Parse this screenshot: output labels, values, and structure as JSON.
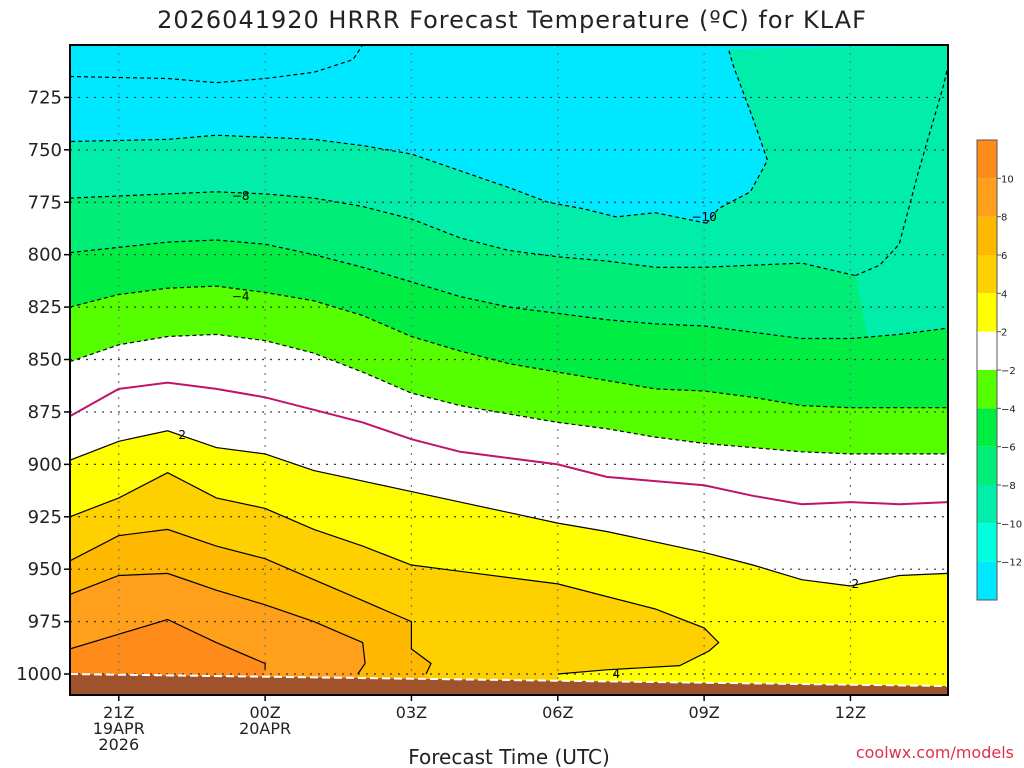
{
  "chart_data": {
    "type": "heatmap",
    "title": "2026041920 HRRR Forecast Temperature (ºC) for KLAF",
    "xlabel": "Forecast Time (UTC)",
    "ylabel": "",
    "credit": "coolwx.com/models",
    "x_ticks": [
      {
        "h": 1,
        "lines": [
          "21Z",
          "19APR",
          "2026"
        ]
      },
      {
        "h": 4,
        "lines": [
          "00Z",
          "20APR"
        ]
      },
      {
        "h": 7,
        "lines": [
          "03Z"
        ]
      },
      {
        "h": 10,
        "lines": [
          "06Z"
        ]
      },
      {
        "h": 13,
        "lines": [
          "09Z"
        ]
      },
      {
        "h": 16,
        "lines": [
          "12Z"
        ]
      }
    ],
    "xlim": [
      0,
      18
    ],
    "y_ticks": [
      725,
      750,
      775,
      800,
      825,
      850,
      875,
      900,
      925,
      950,
      975,
      1000
    ],
    "ylim_hpa": [
      700,
      1010
    ],
    "y_scale": "linear-inverted",
    "grid": true,
    "legend_position": "right",
    "surface_pressure_hpa": 1000,
    "colorbar": {
      "bands": [
        {
          "from": 10,
          "to": 12,
          "color": "#ff8c1a"
        },
        {
          "from": 8,
          "to": 10,
          "color": "#ff9f1a"
        },
        {
          "from": 6,
          "to": 8,
          "color": "#ffb800"
        },
        {
          "from": 4,
          "to": 6,
          "color": "#ffd000"
        },
        {
          "from": 2,
          "to": 4,
          "color": "#ffff00"
        },
        {
          "from": -2,
          "to": 2,
          "color": "#ffffff"
        },
        {
          "from": -4,
          "to": -2,
          "color": "#55ff00"
        },
        {
          "from": -6,
          "to": -4,
          "color": "#00ee44"
        },
        {
          "from": -8,
          "to": -6,
          "color": "#00ee77"
        },
        {
          "from": -10,
          "to": -8,
          "color": "#00eeaa"
        },
        {
          "from": -12,
          "to": -10,
          "color": "#00ffdd"
        },
        {
          "from": -14,
          "to": -12,
          "color": "#00e8ff"
        }
      ],
      "tick_labels": [
        "10",
        "8",
        "6",
        "4",
        "2",
        "−2",
        "−4",
        "−6",
        "−8",
        "−10",
        "−12"
      ]
    },
    "contour_labels": [
      {
        "text": "−8",
        "h": 3.5,
        "p": 772
      },
      {
        "text": "−4",
        "h": 3.5,
        "p": 820
      },
      {
        "text": "−10",
        "h": 13.0,
        "p": 782
      },
      {
        "text": "2",
        "h": 2.3,
        "p": 886
      },
      {
        "text": "2",
        "h": 16.1,
        "p": 957
      },
      {
        "text": "4",
        "h": 11.2,
        "p": 1000
      }
    ],
    "isotherms": [
      {
        "value": -12,
        "points": [
          [
            0,
            715
          ],
          [
            2,
            716
          ],
          [
            3,
            718
          ],
          [
            4,
            716
          ],
          [
            5,
            713
          ],
          [
            5.8,
            707
          ],
          [
            6,
            700
          ]
        ]
      },
      {
        "value": -10,
        "points": [
          [
            13.05,
            785
          ],
          [
            13.3,
            778
          ],
          [
            13.95,
            770
          ],
          [
            14.3,
            755
          ],
          [
            14.0,
            735
          ],
          [
            13.6,
            710
          ],
          [
            13.5,
            702
          ]
        ]
      },
      {
        "value": -10,
        "points": [
          [
            13.05,
            785
          ],
          [
            12.0,
            780
          ],
          [
            11.2,
            782
          ],
          [
            10.5,
            778
          ],
          [
            9.8,
            775
          ],
          [
            9.0,
            768
          ],
          [
            8.0,
            760
          ],
          [
            7.0,
            752
          ],
          [
            6.0,
            748
          ],
          [
            5.0,
            745
          ],
          [
            4.0,
            744
          ],
          [
            3.0,
            743
          ],
          [
            2.0,
            745
          ],
          [
            0,
            746
          ]
        ]
      },
      {
        "value": -10,
        "points": [
          [
            16.1,
            810
          ],
          [
            16.6,
            805
          ],
          [
            17.0,
            795
          ],
          [
            17.4,
            760
          ],
          [
            17.9,
            720
          ],
          [
            18.0,
            710
          ]
        ]
      },
      {
        "value": -8,
        "points": [
          [
            0,
            773
          ],
          [
            2,
            771
          ],
          [
            3,
            770
          ],
          [
            4,
            771
          ],
          [
            5,
            773
          ],
          [
            6,
            777
          ],
          [
            7,
            783
          ],
          [
            8,
            792
          ],
          [
            9,
            798
          ],
          [
            10,
            801
          ],
          [
            11,
            803
          ],
          [
            12,
            806
          ],
          [
            13,
            806
          ],
          [
            14,
            805
          ],
          [
            15,
            804
          ],
          [
            16.1,
            810
          ]
        ]
      },
      {
        "value": -6,
        "points": [
          [
            0,
            799
          ],
          [
            2,
            794
          ],
          [
            3,
            793
          ],
          [
            4,
            795
          ],
          [
            5,
            800
          ],
          [
            6,
            806
          ],
          [
            7,
            813
          ],
          [
            8,
            820
          ],
          [
            9,
            825
          ],
          [
            10,
            828
          ],
          [
            11,
            831
          ],
          [
            12,
            833
          ],
          [
            13,
            834
          ],
          [
            14,
            837
          ],
          [
            15,
            840
          ],
          [
            16,
            840
          ],
          [
            17,
            838
          ],
          [
            18,
            835
          ]
        ]
      },
      {
        "value": -4,
        "points": [
          [
            0,
            825
          ],
          [
            1,
            819
          ],
          [
            2,
            816
          ],
          [
            3,
            815
          ],
          [
            4,
            818
          ],
          [
            5,
            822
          ],
          [
            6,
            829
          ],
          [
            7,
            839
          ],
          [
            8,
            846
          ],
          [
            9,
            852
          ],
          [
            10,
            856
          ],
          [
            11,
            860
          ],
          [
            12,
            864
          ],
          [
            13,
            865
          ],
          [
            14,
            868
          ],
          [
            15,
            872
          ],
          [
            16,
            873
          ],
          [
            17,
            873
          ],
          [
            18,
            873
          ]
        ]
      },
      {
        "value": -2,
        "points": [
          [
            0,
            851
          ],
          [
            1,
            843
          ],
          [
            2,
            839
          ],
          [
            3,
            838
          ],
          [
            4,
            841
          ],
          [
            5,
            847
          ],
          [
            6,
            856
          ],
          [
            7,
            866
          ],
          [
            8,
            872
          ],
          [
            9,
            876
          ],
          [
            10,
            880
          ],
          [
            11,
            883
          ],
          [
            12,
            887
          ],
          [
            13,
            890
          ],
          [
            14,
            892
          ],
          [
            15,
            894
          ],
          [
            16,
            895
          ],
          [
            17,
            895
          ],
          [
            18,
            895
          ]
        ]
      },
      {
        "value": 0,
        "points": [
          [
            0,
            877
          ],
          [
            1,
            864
          ],
          [
            2,
            861
          ],
          [
            3,
            864
          ],
          [
            4,
            868
          ],
          [
            5,
            874
          ],
          [
            6,
            880
          ],
          [
            7,
            888
          ],
          [
            8,
            894
          ],
          [
            9,
            897
          ],
          [
            10,
            900
          ],
          [
            11,
            906
          ],
          [
            12,
            908
          ],
          [
            13,
            910
          ],
          [
            14,
            915
          ],
          [
            15,
            919
          ],
          [
            16,
            918
          ],
          [
            17,
            919
          ],
          [
            18,
            918
          ]
        ]
      },
      {
        "value": 2,
        "points": [
          [
            0,
            898
          ],
          [
            1,
            889
          ],
          [
            2,
            884
          ],
          [
            3,
            892
          ],
          [
            4,
            895
          ],
          [
            5,
            903
          ],
          [
            6,
            908
          ],
          [
            7,
            913
          ],
          [
            8,
            918
          ],
          [
            9,
            923
          ],
          [
            10,
            928
          ],
          [
            11,
            932
          ],
          [
            12,
            937
          ],
          [
            13,
            942
          ],
          [
            14,
            948
          ],
          [
            15,
            955
          ],
          [
            16,
            958
          ],
          [
            17,
            953
          ],
          [
            18,
            952
          ]
        ]
      },
      {
        "value": 4,
        "points": [
          [
            0,
            925
          ],
          [
            1,
            916
          ],
          [
            2,
            904
          ],
          [
            3,
            916
          ],
          [
            4,
            921
          ],
          [
            5,
            931
          ],
          [
            6,
            939
          ],
          [
            7,
            948
          ],
          [
            8,
            951
          ],
          [
            9,
            954
          ],
          [
            10,
            957
          ],
          [
            11,
            963
          ],
          [
            12,
            969
          ],
          [
            13,
            978
          ],
          [
            13.3,
            985
          ],
          [
            13.1,
            989
          ],
          [
            12.5,
            996
          ],
          [
            11,
            998
          ],
          [
            10,
            1000
          ]
        ]
      },
      {
        "value": 6,
        "points": [
          [
            0,
            946
          ],
          [
            1,
            934
          ],
          [
            2,
            931
          ],
          [
            3,
            939
          ],
          [
            4,
            945
          ],
          [
            5,
            955
          ],
          [
            6,
            965
          ],
          [
            7,
            975
          ],
          [
            7,
            988
          ],
          [
            7.4,
            995
          ],
          [
            7.3,
            1000
          ]
        ]
      },
      {
        "value": 8,
        "points": [
          [
            0,
            962
          ],
          [
            1,
            953
          ],
          [
            2,
            952
          ],
          [
            3,
            960
          ],
          [
            4,
            967
          ],
          [
            5,
            975
          ],
          [
            6,
            985
          ],
          [
            6.05,
            995
          ],
          [
            5.9,
            1000
          ]
        ]
      },
      {
        "value": 10,
        "points": [
          [
            0,
            988
          ],
          [
            1,
            981
          ],
          [
            2,
            974
          ],
          [
            3,
            985
          ],
          [
            4,
            995
          ],
          [
            4,
            998
          ]
        ]
      }
    ]
  }
}
